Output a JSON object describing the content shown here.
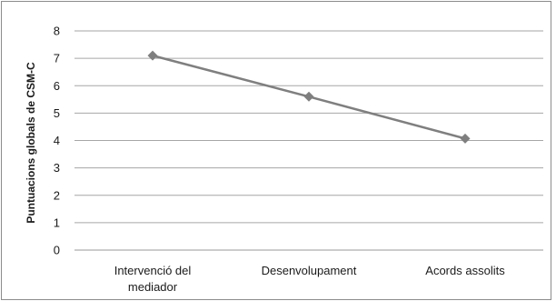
{
  "chart_data": {
    "type": "line",
    "title": "",
    "xlabel": "",
    "ylabel": "Puntuacions globals de CSM-C",
    "categories": [
      [
        "Intervenció del",
        "mediador"
      ],
      [
        "Desenvolupament"
      ],
      [
        "Acords assolits"
      ]
    ],
    "yticks": [
      "0",
      "1",
      "2",
      "3",
      "4",
      "5",
      "6",
      "7",
      "8"
    ],
    "ylim": [
      0,
      8
    ],
    "grid": true,
    "legend": "none",
    "series": [
      {
        "values": [
          7.1,
          5.6,
          4.07
        ],
        "color": "#7f7f7f",
        "marker": "diamond"
      }
    ]
  }
}
